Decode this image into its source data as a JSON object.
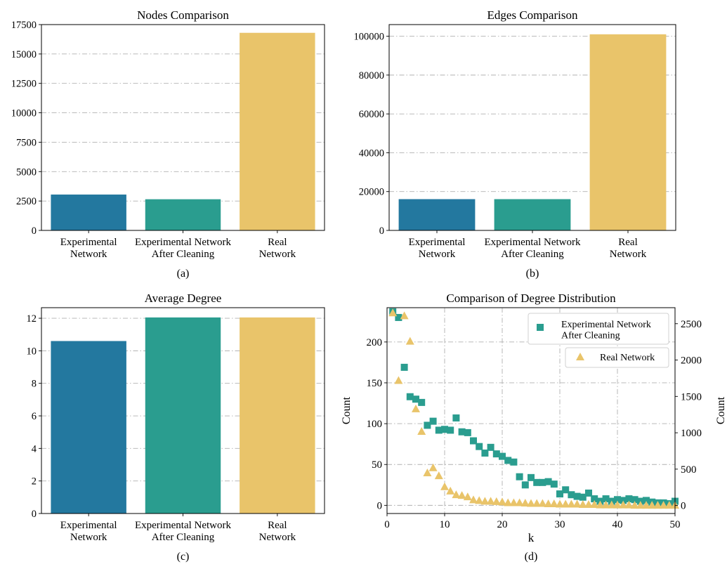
{
  "colors": {
    "experimental": "#23789f",
    "cleaned": "#2a9d8f",
    "real": "#e9c46a",
    "grid": "#b0b0b0"
  },
  "chart_data": [
    {
      "type": "bar",
      "title": "Nodes Comparison",
      "caption": "(a)",
      "categories": [
        "Experimental\nNetwork",
        "Experimental Network\nAfter Cleaning",
        "Real\nNetwork"
      ],
      "values": [
        3050,
        2650,
        16800
      ],
      "ylim": [
        0,
        17500
      ],
      "yticks": [
        0,
        2500,
        5000,
        7500,
        10000,
        12500,
        15000,
        17500
      ],
      "colors": [
        "#23789f",
        "#2a9d8f",
        "#e9c46a"
      ],
      "grid": "y"
    },
    {
      "type": "bar",
      "title": "Edges Comparison",
      "caption": "(b)",
      "categories": [
        "Experimental\nNetwork",
        "Experimental Network\nAfter Cleaning",
        "Real\nNetwork"
      ],
      "values": [
        16100,
        16100,
        101000
      ],
      "ylim": [
        0,
        106000
      ],
      "yticks": [
        0,
        20000,
        40000,
        60000,
        80000,
        100000
      ],
      "colors": [
        "#23789f",
        "#2a9d8f",
        "#e9c46a"
      ],
      "grid": "y"
    },
    {
      "type": "bar",
      "title": "Average Degree",
      "caption": "(c)",
      "categories": [
        "Experimental\nNetwork",
        "Experimental Network\nAfter Cleaning",
        "Real\nNetwork"
      ],
      "values": [
        10.6,
        12.05,
        12.05
      ],
      "ylim": [
        0,
        12.65
      ],
      "yticks": [
        0,
        2,
        4,
        6,
        8,
        10,
        12
      ],
      "colors": [
        "#23789f",
        "#2a9d8f",
        "#e9c46a"
      ],
      "grid": "y"
    },
    {
      "type": "scatter",
      "title": "Comparison of Degree Distribution",
      "caption": "(d)",
      "xlabel": "k",
      "xlim": [
        0,
        50
      ],
      "xticks": [
        0,
        10,
        20,
        30,
        40,
        50
      ],
      "grid": "both",
      "legend": "top-right",
      "axes": {
        "left": {
          "label": "Count",
          "lim": [
            -10,
            242
          ],
          "ticks": [
            0,
            50,
            100,
            150,
            200
          ],
          "color": "#2a9d8f"
        },
        "right": {
          "label": "Count",
          "lim": [
            -110,
            2720
          ],
          "ticks": [
            0,
            500,
            1000,
            1500,
            2000,
            2500
          ],
          "color": "#e9c46a"
        }
      },
      "series": [
        {
          "name": "Experimental Network\nAfter Cleaning",
          "marker": "square",
          "axis": "left",
          "color": "#2a9d8f",
          "x": [
            1,
            2,
            3,
            4,
            5,
            6,
            7,
            8,
            9,
            10,
            11,
            12,
            13,
            14,
            15,
            16,
            17,
            18,
            19,
            20,
            21,
            22,
            23,
            24,
            25,
            26,
            27,
            28,
            29,
            30,
            31,
            32,
            33,
            34,
            35,
            36,
            37,
            38,
            39,
            40,
            41,
            42,
            43,
            44,
            45,
            46,
            47,
            48,
            49,
            50
          ],
          "y": [
            237,
            230,
            169,
            133,
            130,
            126,
            98,
            103,
            92,
            93,
            92,
            107,
            90,
            89,
            79,
            72,
            64,
            71,
            63,
            60,
            55,
            53,
            35,
            25,
            34,
            28,
            28,
            29,
            26,
            14,
            19,
            13,
            11,
            10,
            15,
            8,
            5,
            8,
            5,
            7,
            6,
            8,
            7,
            5,
            6,
            4,
            3,
            3,
            2,
            5
          ]
        },
        {
          "name": "Real Network",
          "marker": "triangle",
          "axis": "right",
          "color": "#e9c46a",
          "x": [
            1,
            2,
            3,
            4,
            5,
            6,
            7,
            8,
            9,
            10,
            11,
            12,
            13,
            14,
            15,
            16,
            17,
            18,
            19,
            20,
            21,
            22,
            23,
            24,
            25,
            26,
            27,
            28,
            29,
            30,
            31,
            32,
            33,
            34,
            35,
            36,
            37,
            38,
            39,
            40,
            41,
            42,
            43,
            44,
            45,
            46,
            47,
            48,
            49,
            50
          ],
          "y": [
            2650,
            1720,
            2610,
            2260,
            1330,
            1020,
            450,
            520,
            410,
            260,
            200,
            150,
            140,
            120,
            80,
            70,
            60,
            60,
            55,
            50,
            40,
            40,
            40,
            35,
            30,
            30,
            30,
            25,
            25,
            20,
            20,
            20,
            20,
            15,
            15,
            15,
            10,
            10,
            10,
            10,
            10,
            10,
            5,
            5,
            5,
            5,
            5,
            5,
            5,
            5
          ]
        }
      ]
    }
  ]
}
